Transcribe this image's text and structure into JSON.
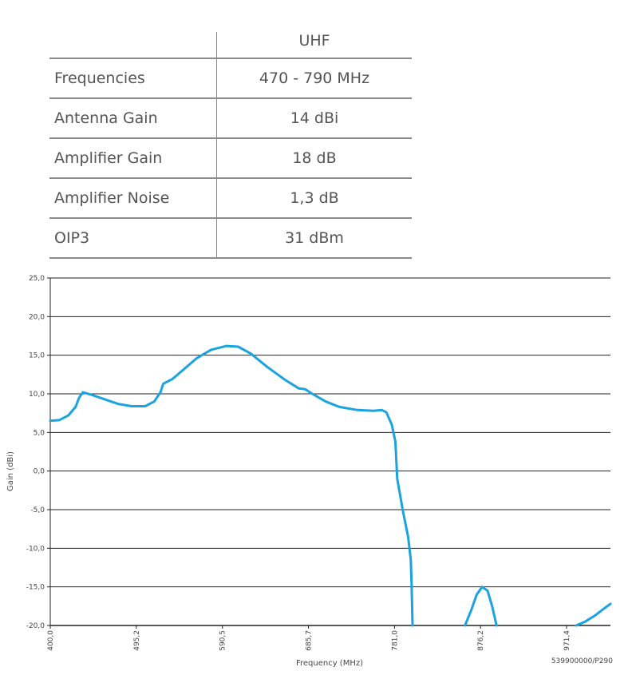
{
  "table": {
    "header": [
      "",
      "UHF"
    ],
    "rows": [
      [
        "Frequencies",
        "470 - 790 MHz"
      ],
      [
        "Antenna Gain",
        "14 dBi"
      ],
      [
        "Amplifier Gain",
        "18 dB"
      ],
      [
        "Amplifier Noise",
        "1,3 dB"
      ],
      [
        "OIP3",
        "31 dBm"
      ]
    ]
  },
  "chart_data": {
    "type": "line",
    "title": "",
    "xlabel": "Frequency (MHz)",
    "ylabel": "Gain (dBi)",
    "xlim": [
      400.0,
      1020.0
    ],
    "ylim": [
      -20.0,
      25.0
    ],
    "grid": true,
    "xticks": [
      400.0,
      495.2,
      590.5,
      685.7,
      781.0,
      876.2,
      971.4
    ],
    "xtick_labels": [
      "400,0",
      "495,2",
      "590,5",
      "685,7",
      "781,0",
      "876,2",
      "971,4"
    ],
    "yticks": [
      -20,
      -15,
      -10,
      -5,
      0,
      5,
      10,
      15,
      20,
      25
    ],
    "ytick_labels": [
      "-20,0",
      "-15,0",
      "-10,0",
      "-5,0",
      "0,0",
      "5,0",
      "10,0",
      "15,0",
      "20,0",
      "25,0"
    ],
    "line_color": "#1aa3e0",
    "series": [
      {
        "segments": [
          [
            [
              400,
              6.5
            ],
            [
              410,
              6.6
            ],
            [
              420,
              7.2
            ],
            [
              428,
              8.3
            ],
            [
              432,
              9.5
            ],
            [
              436,
              10.2
            ],
            [
              445,
              9.9
            ],
            [
              460,
              9.3
            ],
            [
              475,
              8.7
            ],
            [
              490,
              8.4
            ],
            [
              505,
              8.4
            ],
            [
              515,
              9.0
            ],
            [
              522,
              10.2
            ],
            [
              525,
              11.3
            ],
            [
              535,
              11.9
            ],
            [
              548,
              13.2
            ],
            [
              562,
              14.6
            ],
            [
              578,
              15.7
            ],
            [
              595,
              16.2
            ],
            [
              608,
              16.1
            ],
            [
              622,
              15.2
            ],
            [
              640,
              13.5
            ],
            [
              660,
              11.8
            ],
            [
              675,
              10.7
            ],
            [
              682,
              10.6
            ],
            [
              690,
              10.0
            ],
            [
              705,
              9.0
            ],
            [
              720,
              8.3
            ],
            [
              740,
              7.9
            ],
            [
              758,
              7.8
            ],
            [
              767,
              7.9
            ],
            [
              772,
              7.6
            ],
            [
              778,
              6.0
            ],
            [
              782,
              3.8
            ],
            [
              784,
              -1.0
            ],
            [
              790,
              -5.0
            ],
            [
              796,
              -8.5
            ],
            [
              799,
              -11.5
            ],
            [
              800,
              -15.0
            ],
            [
              801,
              -20.0
            ]
          ],
          [
            [
              859,
              -20.0
            ],
            [
              866,
              -18.0
            ],
            [
              872,
              -16.0
            ],
            [
              878,
              -15.0
            ],
            [
              884,
              -15.5
            ],
            [
              889,
              -17.5
            ],
            [
              894,
              -20.0
            ]
          ],
          [
            [
              982,
              -20.0
            ],
            [
              992,
              -19.5
            ],
            [
              1003,
              -18.7
            ],
            [
              1013,
              -17.8
            ],
            [
              1020,
              -17.2
            ]
          ]
        ]
      }
    ]
  },
  "footnote": "539900000/P290"
}
